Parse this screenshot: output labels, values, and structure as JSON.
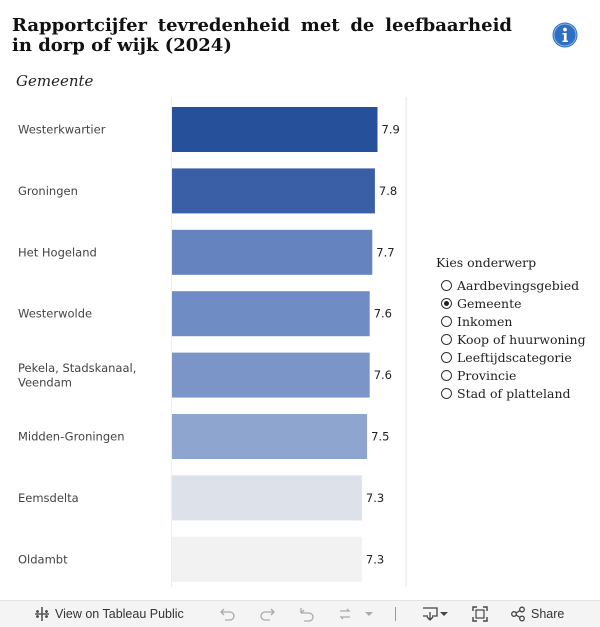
{
  "header": {
    "title": "Rapportcijfer tevredenheid met de leefbaarheid in dorp of wijk (2024)",
    "subtitle": "Gemeente"
  },
  "chart_data": {
    "type": "bar",
    "orientation": "horizontal",
    "title": "Rapportcijfer tevredenheid met de leefbaarheid in dorp of wijk (2024)",
    "categories": [
      "Westerkwartier",
      "Groningen",
      "Het Hogeland",
      "Westerwolde",
      "Pekela, Stadskanaal, Veendam",
      "Midden-Groningen",
      "Eemsdelta",
      "Oldambt"
    ],
    "category_lines": [
      [
        "Westerkwartier"
      ],
      [
        "Groningen"
      ],
      [
        "Het Hogeland"
      ],
      [
        "Westerwolde"
      ],
      [
        "Pekela, Stadskanaal,",
        "Veendam"
      ],
      [
        "Midden-Groningen"
      ],
      [
        "Eemsdelta"
      ],
      [
        "Oldambt"
      ]
    ],
    "values": [
      7.9,
      7.8,
      7.7,
      7.6,
      7.6,
      7.5,
      7.3,
      7.3
    ],
    "value_labels": [
      "7.9",
      "7.8",
      "7.7",
      "7.6",
      "7.6",
      "7.5",
      "7.3",
      "7.3"
    ],
    "colors": [
      "#27509b",
      "#3a5fa6",
      "#6584bf",
      "#6f8cc4",
      "#7b95c8",
      "#8ea5d0",
      "#dde1ea",
      "#f2f2f2"
    ],
    "xlim": [
      0,
      9
    ],
    "xlabel": "",
    "ylabel": "Gemeente"
  },
  "legend": {
    "title": "Kies onderwerp",
    "options": [
      {
        "label": "Aardbevingsgebied",
        "checked": false
      },
      {
        "label": "Gemeente",
        "checked": true
      },
      {
        "label": "Inkomen",
        "checked": false
      },
      {
        "label": "Koop of huurwoning",
        "checked": false
      },
      {
        "label": "Leeftijdscategorie",
        "checked": false
      },
      {
        "label": "Provincie",
        "checked": false
      },
      {
        "label": "Stad of platteland",
        "checked": false
      }
    ]
  },
  "toolbar": {
    "view_label": "View on Tableau Public",
    "share_label": "Share"
  }
}
